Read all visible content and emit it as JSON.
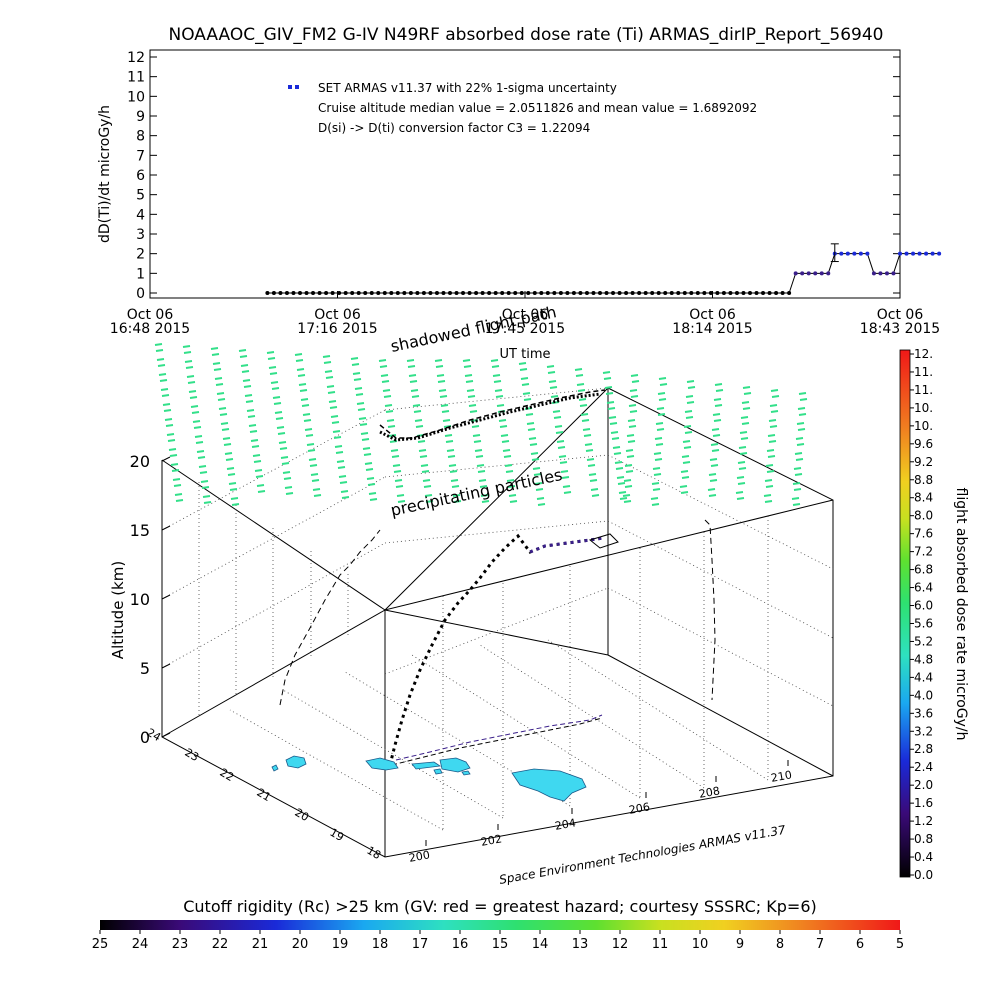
{
  "colors": {
    "series_marker": "#1a2ad8",
    "flight_line": "#000000",
    "particles": "#33e08a",
    "land": "#3fd8f0",
    "dose_path": "#3a1f8a"
  },
  "chart_data": [
    {
      "type": "scatter",
      "title": "NOAAAOC_GIV_FM2 G-IV   N49RF  absorbed dose rate (Ti) ARMAS_dirIP_Report_56940",
      "xlabel": "UT time",
      "ylabel": "dD(Ti)/dt microGy/h",
      "ylim": [
        0,
        12
      ],
      "y_ticks": [
        "0",
        "1",
        "2",
        "3",
        "4",
        "5",
        "6",
        "7",
        "8",
        "9",
        "10",
        "11",
        "12"
      ],
      "x_ticks": [
        {
          "l1": "Oct 06",
          "l2": "16:48 2015"
        },
        {
          "l1": "Oct 06",
          "l2": "17:16 2015"
        },
        {
          "l1": "Oct 06",
          "l2": "17:45 2015"
        },
        {
          "l1": "Oct 06",
          "l2": "18:14 2015"
        },
        {
          "l1": "Oct 06",
          "l2": "18:43 2015"
        }
      ],
      "legend": [
        "SET ARMAS v11.37 with 22% 1-sigma uncertainty",
        "Cruise altitude median value = 2.0511826 and mean value = 1.6892092",
        "D(si) -> D(ti) conversion factor C3 = 1.22094"
      ],
      "series": [
        {
          "name": "SET ARMAS v11.37 with 22% 1-sigma uncertainty",
          "x_start": "17:06",
          "x_step_minutes": 1,
          "values": [
            0,
            0,
            0,
            0,
            0,
            0,
            0,
            0,
            0,
            0,
            0,
            0,
            0,
            0,
            0,
            0,
            0,
            0,
            0,
            0,
            0,
            0,
            0,
            0,
            0,
            0,
            0,
            0,
            0,
            0,
            0,
            0,
            0,
            0,
            0,
            0,
            0,
            0,
            0,
            0,
            0,
            0,
            0,
            0,
            0,
            0,
            0,
            0,
            0,
            0,
            0,
            0,
            0,
            0,
            0,
            0,
            0,
            0,
            0,
            0,
            0,
            0,
            0,
            0,
            0,
            0,
            0,
            0,
            0,
            0,
            0,
            0,
            0,
            0,
            0,
            0,
            0,
            0,
            0,
            0,
            0,
            1,
            1,
            1,
            1,
            1,
            1,
            2,
            2,
            2,
            2,
            2,
            2,
            1,
            1,
            1,
            1,
            2,
            2,
            2,
            2,
            2,
            2,
            2
          ],
          "error_bar": {
            "x": "18:33",
            "y": 2.05,
            "sigma": 0.45
          }
        }
      ]
    },
    {
      "type": "scatter",
      "title": "",
      "annotations": [
        "shadowed flight path",
        "precipitating particles"
      ],
      "zlabel": "Altitude (km)",
      "z_ticks": [
        "0",
        "5",
        "10",
        "15",
        "20"
      ],
      "lon_ticks": [
        "200",
        "202",
        "204",
        "206",
        "208",
        "210"
      ],
      "lat_ticks": [
        "18",
        "19",
        "20",
        "21",
        "22",
        "23",
        "24"
      ],
      "credit": "Space Environment Technologies ARMAS v11.37"
    }
  ],
  "dose_colorbar": {
    "label": "flight absorbed dose rate microGy/h",
    "ticks": [
      "0.0",
      "0.4",
      "0.8",
      "1.2",
      "1.6",
      "2.0",
      "2.4",
      "2.8",
      "3.2",
      "3.6",
      "4.0",
      "4.4",
      "4.8",
      "5.2",
      "5.6",
      "6.0",
      "6.4",
      "6.8",
      "7.2",
      "7.6",
      "8.0",
      "8.4",
      "8.8",
      "9.2",
      "9.6",
      "10.",
      "10.",
      "11.",
      "11.",
      "12."
    ]
  },
  "rigidity_colorbar": {
    "title": "Cutoff rigidity (Rc) >25 km (GV: red = greatest hazard; courtesy SSSRC; Kp=6)",
    "ticks": [
      "25",
      "24",
      "23",
      "22",
      "21",
      "20",
      "19",
      "18",
      "17",
      "16",
      "15",
      "14",
      "13",
      "12",
      "11",
      "10",
      "9",
      "8",
      "7",
      "6",
      "5"
    ]
  }
}
